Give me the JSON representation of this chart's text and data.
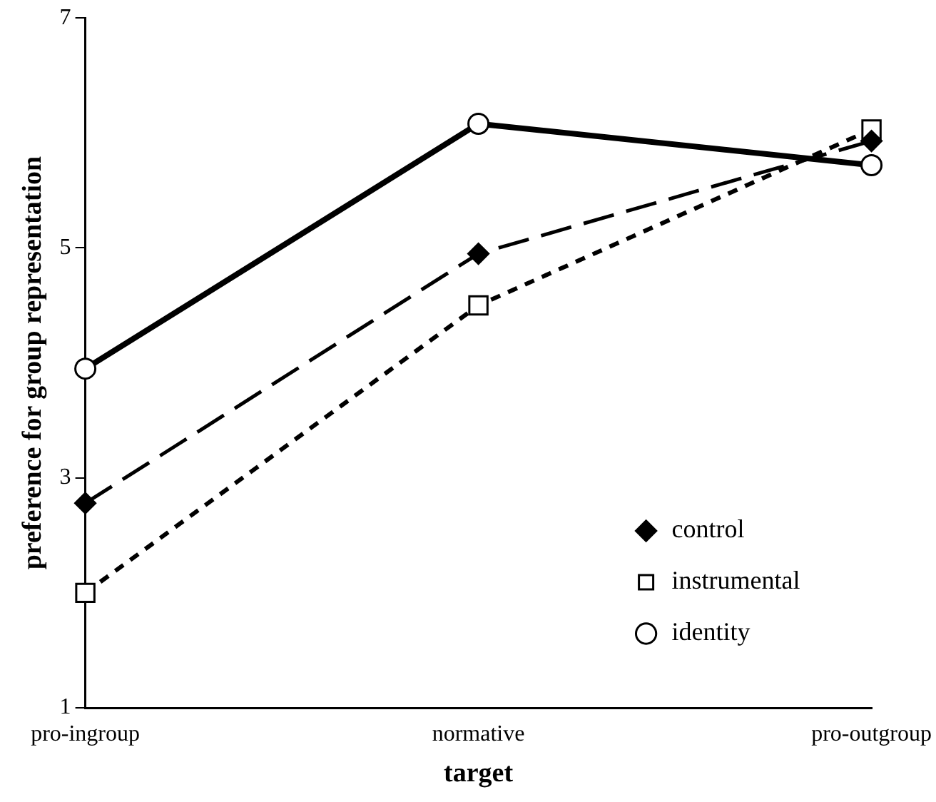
{
  "chart_data": {
    "type": "line",
    "xlabel": "target",
    "ylabel": "preference for group representation",
    "categories": [
      "pro-ingroup",
      "normative",
      "pro-outgroup"
    ],
    "series": [
      {
        "name": "control",
        "color": "#000000",
        "values": [
          2.78,
          4.95,
          5.93
        ],
        "marker": "diamond",
        "line_style": "dashed"
      },
      {
        "name": "instrumental",
        "color": "#000000",
        "values": [
          2.0,
          4.5,
          6.03
        ],
        "marker": "square",
        "line_style": "dotted"
      },
      {
        "name": "identity",
        "color": "#000000",
        "values": [
          3.95,
          6.08,
          5.72
        ],
        "marker": "circle",
        "line_style": "solid"
      }
    ],
    "ylim": [
      1,
      7
    ],
    "yticks": [
      1,
      3,
      5,
      7
    ],
    "grid": false,
    "legend": "bottom right"
  }
}
